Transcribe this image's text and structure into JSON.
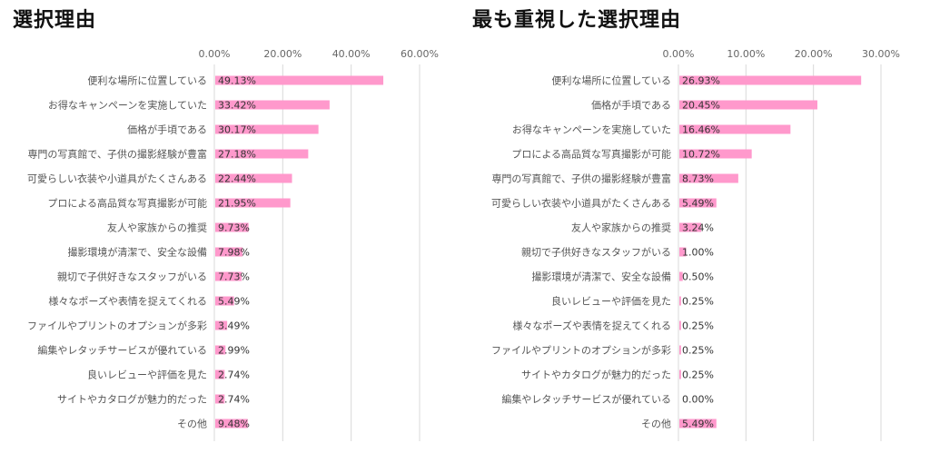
{
  "chart_data": [
    {
      "type": "bar",
      "orientation": "horizontal",
      "title": "選択理由",
      "categories": [
        "便利な場所に位置している",
        "お得なキャンペーンを実施していた",
        "価格が手頃である",
        "専門の写真館で、子供の撮影経験が豊富",
        "可愛らしい衣装や小道具がたくさんある",
        "プロによる高品質な写真撮影が可能",
        "友人や家族からの推奨",
        "撮影環境が清潔で、安全な設備",
        "親切で子供好きなスタッフがいる",
        "様々なポーズや表情を捉えてくれる",
        "ファイルやプリントのオプションが多彩",
        "編集やレタッチサービスが優れている",
        "良いレビューや評価を見た",
        "サイトやカタログが魅力的だった",
        "その他"
      ],
      "values": [
        49.13,
        33.42,
        30.17,
        27.18,
        22.44,
        21.95,
        9.73,
        7.98,
        7.73,
        5.49,
        3.49,
        2.99,
        2.74,
        2.74,
        9.48
      ],
      "value_labels": [
        "49.13%",
        "33.42%",
        "30.17%",
        "27.18%",
        "22.44%",
        "21.95%",
        "9.73%",
        "7.98%",
        "7.73%",
        "5.49%",
        "3.49%",
        "2.99%",
        "2.74%",
        "2.74%",
        "9.48%"
      ],
      "xlim": [
        0,
        60
      ],
      "xticks": [
        0,
        20,
        40,
        60
      ],
      "xtick_labels": [
        "0.00%",
        "20.00%",
        "40.00%",
        "60.00%"
      ],
      "grid": true,
      "bar_color": "#ff99cc",
      "grid_color": "#d9d9d9"
    },
    {
      "type": "bar",
      "orientation": "horizontal",
      "title": "最も重視した選択理由",
      "categories": [
        "便利な場所に位置している",
        "価格が手頃である",
        "お得なキャンペーンを実施していた",
        "プロによる高品質な写真撮影が可能",
        "専門の写真館で、子供の撮影経験が豊富",
        "可愛らしい衣装や小道具がたくさんある",
        "友人や家族からの推奨",
        "親切で子供好きなスタッフがいる",
        "撮影環境が清潔で、安全な設備",
        "良いレビューや評価を見た",
        "様々なポーズや表情を捉えてくれる",
        "ファイルやプリントのオプションが多彩",
        "サイトやカタログが魅力的だった",
        "編集やレタッチサービスが優れている",
        "その他"
      ],
      "values": [
        26.93,
        20.45,
        16.46,
        10.72,
        8.73,
        5.49,
        3.24,
        1.0,
        0.5,
        0.25,
        0.25,
        0.25,
        0.25,
        0.0,
        5.49
      ],
      "value_labels": [
        "26.93%",
        "20.45%",
        "16.46%",
        "10.72%",
        "8.73%",
        "5.49%",
        "3.24%",
        "1.00%",
        "0.50%",
        "0.25%",
        "0.25%",
        "0.25%",
        "0.25%",
        "0.00%",
        "5.49%"
      ],
      "xlim": [
        0,
        30
      ],
      "xticks": [
        0,
        10,
        20,
        30
      ],
      "xtick_labels": [
        "0.00%",
        "10.00%",
        "20.00%",
        "30.00%"
      ],
      "grid": true,
      "bar_color": "#ff99cc",
      "grid_color": "#d9d9d9"
    }
  ]
}
